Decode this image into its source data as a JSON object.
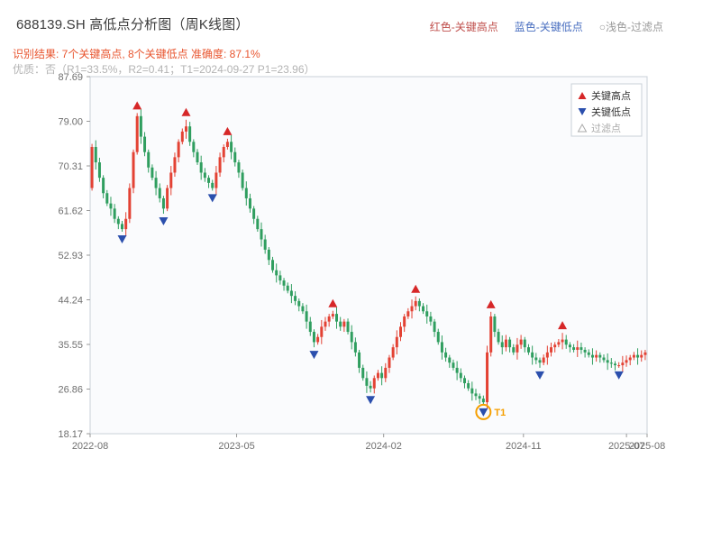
{
  "header": {
    "title": "688139.SH 高低点分析图（周K线图）",
    "legend_top": [
      {
        "label": "红色-关键高点",
        "color": "#c0504d"
      },
      {
        "label": "蓝色-关键低点",
        "color": "#4a6fc0"
      },
      {
        "label": "○浅色-过滤点",
        "color": "#9a9a9a"
      }
    ],
    "result_line": "识别结果: 7个关键高点, 8个关键低点  准确度: 87.1%",
    "quality_line": "优质：否（R1=33.5%，R2=0.41；T1=2024-09-27 P1=23.96）"
  },
  "chart_data": {
    "type": "candlestick",
    "title": "688139.SH 高低点分析图（周K线图）",
    "symbol": "688139.SH",
    "period": "weekly",
    "key_high_count": 7,
    "key_low_count": 8,
    "accuracy": "87.1%",
    "ylim": [
      18.17,
      87.69
    ],
    "y_ticks": [
      "87.69",
      "79.00",
      "70.31",
      "61.62",
      "52.93",
      "44.24",
      "35.55",
      "26.86",
      "18.17"
    ],
    "x_ticks": [
      {
        "pos": 0.0,
        "label": "2022-08"
      },
      {
        "pos": 0.263,
        "label": "2023-05"
      },
      {
        "pos": 0.527,
        "label": "2024-02"
      },
      {
        "pos": 0.778,
        "label": "2024-11"
      },
      {
        "pos": 0.963,
        "label": "2025-07"
      },
      {
        "pos": 1.0,
        "label": "2025-08"
      }
    ],
    "first_open": 66,
    "closes": [
      74,
      71,
      68,
      65,
      63,
      62,
      60,
      59,
      58,
      60,
      66,
      73,
      80,
      76,
      73,
      70,
      68,
      66,
      64,
      62,
      66,
      69,
      72,
      75,
      77,
      78,
      75,
      73,
      71,
      69,
      68,
      67,
      66,
      69,
      72,
      74,
      75,
      73,
      71,
      69,
      66,
      64,
      62,
      60,
      58,
      56,
      54,
      52,
      50,
      49,
      48,
      47,
      46,
      45,
      44,
      43,
      42,
      40,
      38,
      36,
      37,
      39,
      40,
      41,
      41.5,
      40,
      39,
      40,
      38,
      36,
      34,
      31,
      29,
      27.5,
      27,
      29,
      30,
      29,
      31,
      33,
      35,
      37,
      39,
      41,
      42,
      43,
      44,
      43,
      42,
      41,
      40,
      38,
      36,
      34,
      33,
      32,
      31,
      30,
      29,
      28,
      27,
      26,
      25.5,
      25,
      24.3,
      34,
      41,
      38,
      36,
      35,
      36.5,
      35,
      34,
      35.5,
      36.5,
      35,
      34,
      33,
      32.5,
      32,
      33,
      34,
      35,
      35.5,
      36,
      36.5,
      35.5,
      35,
      34.5,
      35,
      34.5,
      34,
      33.5,
      33,
      33.5,
      33,
      32.5,
      32,
      31.8,
      31.5,
      31.5,
      32,
      32.5,
      33,
      33.5,
      33,
      33.5,
      34
    ],
    "key_highs": [
      {
        "index": 12,
        "price": 81
      },
      {
        "index": 25,
        "price": 79
      },
      {
        "index": 36,
        "price": 76
      },
      {
        "index": 64,
        "price": 42.5
      },
      {
        "index": 86,
        "price": 45
      },
      {
        "index": 106,
        "price": 42.5
      },
      {
        "index": 125,
        "price": 37.5
      }
    ],
    "key_lows": [
      {
        "index": 8,
        "price": 57
      },
      {
        "index": 19,
        "price": 61
      },
      {
        "index": 32,
        "price": 65
      },
      {
        "index": 59,
        "price": 35
      },
      {
        "index": 74,
        "price": 26
      },
      {
        "index": 104,
        "price": 23.96
      },
      {
        "index": 119,
        "price": 31
      },
      {
        "index": 140,
        "price": 30.5
      }
    ],
    "t1_marker": {
      "index": 104,
      "label": "T1",
      "price": 23.96,
      "date": "2024-09-27"
    },
    "legend_box": [
      {
        "label": "关键高点",
        "marker": "up-triangle",
        "color": "#d62728",
        "text_color": "#333333"
      },
      {
        "label": "关键低点",
        "marker": "down-triangle",
        "color": "#2b4fad",
        "text_color": "#333333"
      },
      {
        "label": "过滤点",
        "marker": "hollow-triangle",
        "color": "#aaaaaa",
        "text_color": "#aaaaaa"
      }
    ],
    "colors": {
      "up": "#e34234",
      "down": "#2f9e5f",
      "high_marker": "#d62728",
      "low_marker": "#2b4fad",
      "t1": "#f59f00"
    }
  }
}
